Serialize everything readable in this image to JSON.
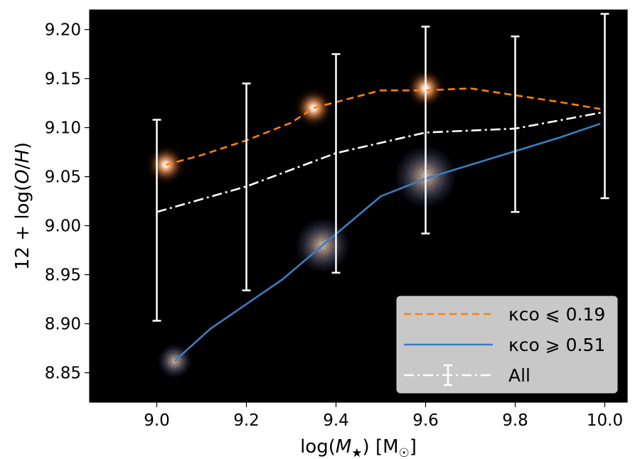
{
  "chart_data": {
    "type": "line",
    "xlabel": "log(M★) [M☉]",
    "ylabel": "12 + log(O/H)",
    "xlim": [
      8.85,
      10.05
    ],
    "ylim": [
      8.82,
      9.22
    ],
    "xticks": [
      9.0,
      9.2,
      9.4,
      9.6,
      9.8,
      10.0
    ],
    "xtick_labels": [
      "9.0",
      "9.2",
      "9.4",
      "9.6",
      "9.8",
      "10.0"
    ],
    "yticks": [
      8.85,
      8.9,
      8.95,
      9.0,
      9.05,
      9.1,
      9.15,
      9.2
    ],
    "ytick_labels": [
      "8.85",
      "8.90",
      "8.95",
      "9.00",
      "9.05",
      "9.10",
      "9.15",
      "9.20"
    ],
    "background": "#000000",
    "series": [
      {
        "name": "κco ⩽ 0.19",
        "color": "#ff7f0e",
        "style": "dashed",
        "x": [
          9.02,
          9.1,
          9.2,
          9.3,
          9.35,
          9.5,
          9.6,
          9.7,
          9.8,
          9.9,
          9.99
        ],
        "y": [
          9.062,
          9.072,
          9.087,
          9.105,
          9.12,
          9.138,
          9.138,
          9.14,
          9.133,
          9.126,
          9.119
        ]
      },
      {
        "name": "κco ⩾ 0.51",
        "color": "#3a7ebf",
        "style": "solid",
        "x": [
          9.04,
          9.12,
          9.28,
          9.37,
          9.5,
          9.6,
          9.7,
          9.8,
          9.9,
          9.99
        ],
        "y": [
          8.862,
          8.895,
          8.945,
          8.98,
          9.03,
          9.048,
          9.062,
          9.076,
          9.09,
          9.104
        ]
      },
      {
        "name": "All",
        "color": "#ffffff",
        "style": "dashdot",
        "x": [
          9.0,
          9.2,
          9.4,
          9.6,
          9.8,
          10.0
        ],
        "y": [
          9.014,
          9.04,
          9.074,
          9.095,
          9.099,
          9.116
        ],
        "yerr_low": [
          8.903,
          8.934,
          8.952,
          8.992,
          9.014,
          9.028
        ],
        "yerr_high": [
          9.108,
          9.145,
          9.175,
          9.203,
          9.193,
          9.216
        ]
      }
    ],
    "galaxy_images": [
      {
        "x": 9.02,
        "y": 9.062,
        "kind": "compact-orange"
      },
      {
        "x": 9.35,
        "y": 9.12,
        "kind": "compact-orange"
      },
      {
        "x": 9.6,
        "y": 9.14,
        "kind": "compact-orange"
      },
      {
        "x": 9.04,
        "y": 8.862,
        "kind": "disk-blue"
      },
      {
        "x": 9.37,
        "y": 8.98,
        "kind": "disk-blue"
      },
      {
        "x": 9.6,
        "y": 9.05,
        "kind": "disk-blue"
      }
    ],
    "legend": {
      "location": "lower-right",
      "entries": [
        "κco ⩽ 0.19",
        "κco ⩾ 0.51",
        "All"
      ]
    }
  }
}
